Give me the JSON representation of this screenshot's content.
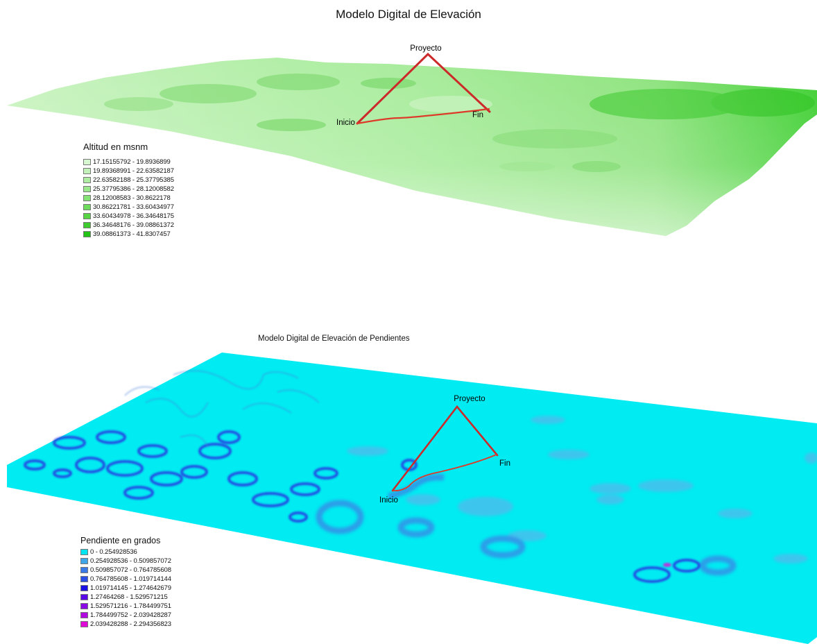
{
  "dem_map": {
    "title": "Modelo Digital de Elevación",
    "legend": {
      "title": "Altitud en msnm",
      "items": [
        {
          "label": "17.15155792 - 19.8936899",
          "color": "#d6f7d0"
        },
        {
          "label": "19.89368991 - 22.63582187",
          "color": "#c2f2b9"
        },
        {
          "label": "22.63582188 - 25.37795385",
          "color": "#aeeda2"
        },
        {
          "label": "25.37795386 - 28.12008582",
          "color": "#9ae88b"
        },
        {
          "label": "28.12008583 - 30.8622178",
          "color": "#85e274"
        },
        {
          "label": "30.86221781 - 33.60434977",
          "color": "#6fdb5c"
        },
        {
          "label": "33.60434978 - 36.34648175",
          "color": "#58d445"
        },
        {
          "label": "36.34648176 - 39.08861372",
          "color": "#3fcc2e"
        },
        {
          "label": "39.08861373 - 41.8307457",
          "color": "#22c316"
        }
      ]
    },
    "labels": {
      "project": "Proyecto",
      "start": "Inicio",
      "end": "Fin"
    }
  },
  "slope_map": {
    "title": "Modelo Digital de Elevación de Pendientes",
    "legend": {
      "title": "Pendiente en grados",
      "items": [
        {
          "label": "0 - 0.254928536",
          "color": "#00e5f0"
        },
        {
          "label": "0.254928536 - 0.509857072",
          "color": "#3fa6e8"
        },
        {
          "label": "0.509857072 - 0.764785608",
          "color": "#3a7ae6"
        },
        {
          "label": "0.764785608 - 1.019714144",
          "color": "#2a4ee6"
        },
        {
          "label": "1.019714145 - 1.274642679",
          "color": "#1a10e6"
        },
        {
          "label": "1.27464268 - 1.529571215",
          "color": "#5a0ae6"
        },
        {
          "label": "1.529571216 - 1.784499751",
          "color": "#8a0ae6"
        },
        {
          "label": "1.784499752 - 2.039428287",
          "color": "#b10ae0"
        },
        {
          "label": "2.039428288 - 2.294356823",
          "color": "#e00ad6"
        }
      ]
    },
    "labels": {
      "project": "Proyecto",
      "start": "Inicio",
      "end": "Fin"
    }
  }
}
